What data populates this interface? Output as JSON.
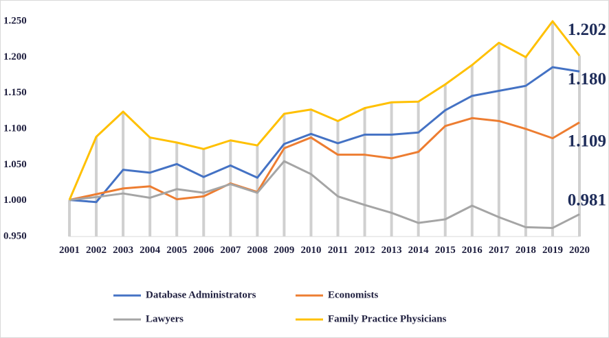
{
  "chart_data": {
    "type": "line",
    "categories": [
      "2001",
      "2002",
      "2003",
      "2004",
      "2005",
      "2006",
      "2007",
      "2008",
      "2009",
      "2010",
      "2011",
      "2012",
      "2013",
      "2014",
      "2015",
      "2016",
      "2017",
      "2018",
      "2019",
      "2020"
    ],
    "series": [
      {
        "name": "Database Administrators",
        "color": "#4472c4",
        "values": [
          1.001,
          0.998,
          1.043,
          1.039,
          1.051,
          1.033,
          1.049,
          1.032,
          1.079,
          1.093,
          1.08,
          1.092,
          1.092,
          1.095,
          1.126,
          1.146,
          1.153,
          1.16,
          1.186,
          1.18
        ],
        "value_labels": [
          null,
          null,
          null,
          null,
          null,
          null,
          null,
          null,
          null,
          null,
          null,
          null,
          null,
          null,
          null,
          null,
          null,
          null,
          null,
          "1.180"
        ]
      },
      {
        "name": "Economists",
        "color": "#ed7d31",
        "values": [
          1.001,
          1.009,
          1.017,
          1.02,
          1.002,
          1.006,
          1.024,
          1.012,
          1.073,
          1.088,
          1.064,
          1.064,
          1.059,
          1.068,
          1.104,
          1.115,
          1.111,
          1.1,
          1.087,
          1.109
        ],
        "value_labels": [
          null,
          null,
          null,
          null,
          null,
          null,
          null,
          null,
          null,
          null,
          null,
          null,
          null,
          null,
          null,
          null,
          null,
          null,
          null,
          "1.109"
        ]
      },
      {
        "name": "Lawyers",
        "color": "#a5a5a5",
        "values": [
          1.001,
          1.005,
          1.01,
          1.004,
          1.016,
          1.011,
          1.023,
          1.011,
          1.055,
          1.037,
          1.006,
          0.994,
          0.983,
          0.969,
          0.974,
          0.993,
          0.977,
          0.963,
          0.962,
          0.981
        ],
        "value_labels": [
          null,
          null,
          null,
          null,
          null,
          null,
          null,
          null,
          null,
          null,
          null,
          null,
          null,
          null,
          null,
          null,
          null,
          null,
          null,
          "0.981"
        ]
      },
      {
        "name": "Family Practice Physicians",
        "color": "#ffc000",
        "values": [
          1.001,
          1.089,
          1.124,
          1.088,
          1.081,
          1.072,
          1.084,
          1.077,
          1.121,
          1.127,
          1.111,
          1.129,
          1.137,
          1.138,
          1.162,
          1.189,
          1.22,
          1.2,
          1.25,
          1.202
        ],
        "value_labels": [
          null,
          null,
          null,
          null,
          null,
          null,
          null,
          null,
          null,
          null,
          null,
          null,
          null,
          null,
          null,
          null,
          null,
          null,
          null,
          "1.202"
        ]
      }
    ],
    "ylim": [
      0.95,
      1.25
    ],
    "yticks": [
      {
        "value": 0.95,
        "label": "0.950"
      },
      {
        "value": 1.0,
        "label": "1.000"
      },
      {
        "value": 1.05,
        "label": "1.050"
      },
      {
        "value": 1.1,
        "label": "1.100"
      },
      {
        "value": 1.15,
        "label": "1.150"
      },
      {
        "value": 1.2,
        "label": "1.200"
      },
      {
        "value": 1.25,
        "label": "1.250"
      }
    ],
    "grid": false,
    "legend": "bottom"
  }
}
